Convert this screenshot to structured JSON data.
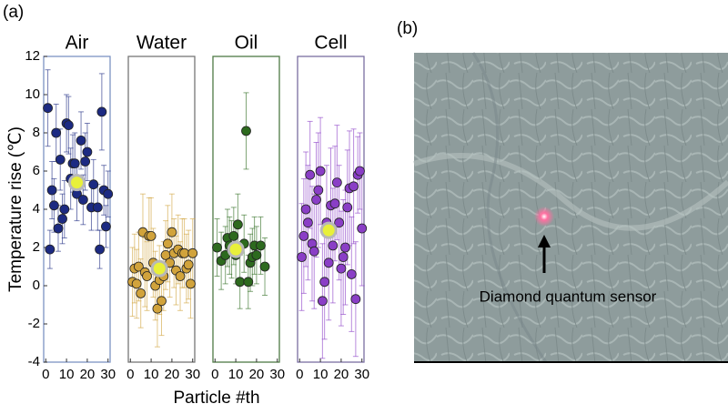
{
  "panel_a_label": "(a)",
  "panel_b_label": "(b)",
  "ylabel": "Temperature rise (℃)",
  "xlabel": "Particle #th",
  "image_caption": "Diamond quantum sensor",
  "chart_data": [
    {
      "type": "scatter",
      "title": "Air",
      "color": "#1c2a82",
      "frame_color": "#7d93c2",
      "x": [
        1,
        2,
        3,
        4,
        5,
        6,
        7,
        8,
        9,
        10,
        11,
        12,
        13,
        14,
        15,
        17,
        18,
        19,
        20,
        22,
        23,
        25,
        26,
        27,
        28,
        29,
        30
      ],
      "values": [
        9.3,
        1.9,
        5.0,
        4.2,
        8.0,
        3.0,
        6.6,
        3.5,
        4.0,
        8.5,
        8.4,
        5.6,
        6.4,
        6.4,
        4.8,
        7.6,
        4.5,
        6.5,
        7.0,
        4.1,
        5.3,
        4.1,
        1.9,
        9.1,
        5.0,
        3.1,
        4.8
      ],
      "errors": [
        2.0,
        1.0,
        1.5,
        1.4,
        1.5,
        1.2,
        1.6,
        1.3,
        1.5,
        1.5,
        1.5,
        1.6,
        1.5,
        1.6,
        1.4,
        1.5,
        1.3,
        1.5,
        1.5,
        1.2,
        1.3,
        1.2,
        1.0,
        2.0,
        1.3,
        1.1,
        1.2
      ],
      "mean": {
        "x": 15,
        "y": 5.4
      },
      "xlim": [
        -1,
        31
      ],
      "xticks": [
        0,
        10,
        20,
        30
      ],
      "ylim": [
        -4,
        12
      ],
      "yticks": [
        -4,
        -2,
        0,
        2,
        4,
        6,
        8,
        10,
        12
      ]
    },
    {
      "type": "scatter",
      "title": "Water",
      "color": "#d1a33c",
      "frame_color": "#777777",
      "x": [
        1,
        2,
        3,
        4,
        5,
        6,
        7,
        8,
        9,
        10,
        11,
        12,
        13,
        14,
        15,
        16,
        17,
        18,
        19,
        20,
        21,
        22,
        23,
        24,
        25,
        26,
        27,
        28,
        29,
        30
      ],
      "values": [
        0.2,
        0.9,
        0.1,
        1.0,
        -0.4,
        2.8,
        0.7,
        0.5,
        2.6,
        2.6,
        1.2,
        0.0,
        -1.2,
        0.3,
        -0.8,
        0.5,
        1.6,
        2.2,
        1.2,
        2.8,
        1.7,
        0.8,
        1.9,
        0.5,
        1.7,
        1.7,
        0.9,
        1.1,
        0.1,
        1.7
      ],
      "errors": [
        1.8,
        1.8,
        1.8,
        1.8,
        1.8,
        2.0,
        1.8,
        1.8,
        2.0,
        2.0,
        1.8,
        1.8,
        2.0,
        1.8,
        1.8,
        1.8,
        1.8,
        2.0,
        1.8,
        2.0,
        1.8,
        1.8,
        1.8,
        1.8,
        1.8,
        1.8,
        1.8,
        1.8,
        1.8,
        1.8
      ],
      "mean": {
        "x": 14,
        "y": 0.9
      },
      "xlim": [
        -1,
        31
      ],
      "xticks": [
        0,
        10,
        20,
        30
      ],
      "ylim": [
        -4,
        12
      ]
    },
    {
      "type": "scatter",
      "title": "Oil",
      "color": "#2d6a1e",
      "frame_color": "#4f7a45",
      "x": [
        1,
        3,
        5,
        6,
        7,
        8,
        9,
        10,
        11,
        12,
        14,
        15,
        16,
        17,
        18,
        19,
        20,
        22,
        24
      ],
      "values": [
        2.0,
        1.3,
        1.6,
        2.5,
        2.1,
        1.9,
        2.6,
        1.6,
        3.2,
        0.2,
        2.2,
        8.1,
        0.2,
        1.2,
        1.5,
        2.1,
        1.6,
        2.1,
        1.0
      ],
      "errors": [
        1.5,
        1.5,
        1.5,
        1.5,
        1.5,
        1.5,
        1.5,
        1.5,
        1.6,
        1.4,
        1.5,
        2.0,
        1.4,
        1.5,
        1.5,
        1.5,
        1.5,
        1.5,
        1.5
      ],
      "mean": {
        "x": 10,
        "y": 1.9
      },
      "xlim": [
        -1,
        31
      ],
      "xticks": [
        0,
        10,
        20,
        30
      ],
      "ylim": [
        -4,
        12
      ]
    },
    {
      "type": "scatter",
      "title": "Cell",
      "color": "#8a3ec6",
      "frame_color": "#7a6ea0",
      "x": [
        1,
        2,
        3,
        4,
        5,
        6,
        7,
        8,
        9,
        10,
        11,
        12,
        13,
        14,
        15,
        16,
        17,
        18,
        19,
        20,
        21,
        22,
        23,
        24,
        25,
        26,
        27,
        28,
        29,
        30
      ],
      "values": [
        1.5,
        2.6,
        4.0,
        3.3,
        5.8,
        2.2,
        1.8,
        4.5,
        5.0,
        6.0,
        -0.8,
        0.2,
        3.3,
        1.2,
        4.2,
        2.1,
        4.3,
        5.4,
        3.3,
        0.9,
        1.5,
        2.0,
        4.1,
        5.1,
        0.6,
        5.2,
        -0.7,
        5.8,
        6.0,
        3.0
      ],
      "errors": [
        2.8,
        3.0,
        3.0,
        3.0,
        2.8,
        3.0,
        3.0,
        3.0,
        3.0,
        2.8,
        3.0,
        3.0,
        3.0,
        3.0,
        3.0,
        3.0,
        3.0,
        3.0,
        3.0,
        3.0,
        3.0,
        3.0,
        3.0,
        3.0,
        3.0,
        3.0,
        3.0,
        2.0,
        2.0,
        3.0
      ],
      "mean": {
        "x": 14,
        "y": 2.9
      },
      "xlim": [
        -1,
        31
      ],
      "xticks": [
        0,
        10,
        20,
        30
      ],
      "ylim": [
        -4,
        12
      ]
    }
  ]
}
